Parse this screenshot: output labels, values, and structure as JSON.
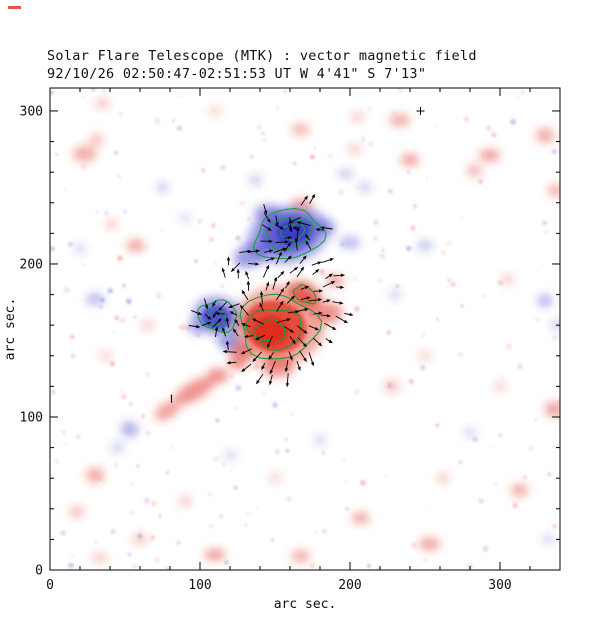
{
  "chart_data": {
    "type": "heatmap",
    "title": "Solar Flare Telescope (MTK) : vector magnetic field",
    "subtitle": "92/10/26  02:50:47-02:51:53 UT    W 4'41\"  S 7'13\"",
    "xlabel": "arc sec.",
    "ylabel": "arc sec.",
    "xlim": [
      0,
      340
    ],
    "ylim": [
      0,
      315
    ],
    "xticks": [
      0,
      100,
      200,
      300
    ],
    "yticks": [
      0,
      100,
      200,
      300
    ],
    "minor_tick_step": 20,
    "grid": false,
    "colors": {
      "positive": "#e02c1e",
      "negative": "#3c3cc8",
      "contour": "#14a03c",
      "vector": "#000000",
      "axis": "#000000",
      "background": "#ffffff"
    },
    "main_regions": [
      [
        159,
        219,
        28,
        19,
        -12,
        -1,
        0.38
      ],
      [
        159,
        220,
        20,
        14,
        -12,
        -1,
        0.7
      ],
      [
        162,
        221,
        11,
        8,
        -12,
        -1,
        0.95
      ],
      [
        134,
        206,
        12,
        8,
        -25,
        -1,
        0.5
      ],
      [
        145,
        233,
        9,
        6,
        0,
        -1,
        0.45
      ],
      [
        183,
        224,
        8,
        5,
        0,
        -1,
        0.4
      ],
      [
        200,
        214,
        7,
        4,
        0,
        -1,
        0.35
      ],
      [
        112,
        166,
        17,
        13,
        10,
        -1,
        0.45
      ],
      [
        111,
        165,
        10,
        8,
        10,
        -1,
        0.8
      ],
      [
        120,
        149,
        8,
        6,
        0,
        -1,
        0.5
      ],
      [
        98,
        159,
        6,
        5,
        0,
        -1,
        0.4
      ],
      [
        153,
        160,
        30,
        26,
        0,
        1,
        0.42
      ],
      [
        150,
        159,
        21,
        17,
        10,
        1,
        0.75
      ],
      [
        147,
        156,
        12,
        10,
        0,
        1,
        0.95
      ],
      [
        170,
        180,
        12,
        8,
        30,
        1,
        0.65
      ],
      [
        186,
        168,
        9,
        7,
        0,
        1,
        0.5
      ],
      [
        152,
        133,
        11,
        7,
        0,
        1,
        0.5
      ],
      [
        128,
        142,
        8,
        6,
        0,
        1,
        0.55
      ],
      [
        168,
        239,
        7,
        4,
        0,
        1,
        0.4
      ],
      [
        190,
        189,
        6,
        4,
        0,
        1,
        0.45
      ]
    ],
    "background_features": [
      [
        96,
        117,
        15,
        6,
        -30,
        1,
        0.5
      ],
      [
        78,
        104,
        9,
        5,
        -30,
        1,
        0.45
      ],
      [
        112,
        127,
        7,
        5,
        0,
        1,
        0.5
      ],
      [
        125,
        135,
        6,
        4,
        0,
        1,
        0.5
      ],
      [
        23,
        272,
        8,
        5,
        0,
        1,
        0.4
      ],
      [
        31,
        281,
        5,
        4,
        0,
        1,
        0.3
      ],
      [
        57,
        212,
        6,
        4,
        0,
        1,
        0.45
      ],
      [
        41,
        226,
        4,
        3,
        0,
        1,
        0.3
      ],
      [
        167,
        288,
        6,
        4,
        0,
        1,
        0.35
      ],
      [
        203,
        275,
        4,
        3,
        0,
        1,
        0.3
      ],
      [
        233,
        294,
        7,
        4,
        0,
        1,
        0.4
      ],
      [
        240,
        268,
        6,
        4,
        0,
        1,
        0.45
      ],
      [
        293,
        271,
        7,
        4,
        0,
        1,
        0.45
      ],
      [
        283,
        261,
        5,
        4,
        0,
        1,
        0.35
      ],
      [
        330,
        284,
        6,
        5,
        0,
        1,
        0.4
      ],
      [
        337,
        248,
        5,
        4,
        0,
        1,
        0.4
      ],
      [
        305,
        190,
        4,
        3,
        0,
        1,
        0.3
      ],
      [
        336,
        105,
        6,
        5,
        0,
        1,
        0.45
      ],
      [
        313,
        52,
        6,
        4,
        0,
        1,
        0.4
      ],
      [
        253,
        17,
        7,
        4,
        0,
        1,
        0.45
      ],
      [
        207,
        34,
        6,
        4,
        0,
        1,
        0.4
      ],
      [
        167,
        9,
        6,
        4,
        0,
        1,
        0.4
      ],
      [
        110,
        10,
        7,
        4,
        0,
        1,
        0.45
      ],
      [
        33,
        8,
        5,
        3,
        0,
        1,
        0.3
      ],
      [
        30,
        62,
        6,
        5,
        0,
        1,
        0.4
      ],
      [
        18,
        38,
        5,
        4,
        0,
        1,
        0.3
      ],
      [
        60,
        20,
        5,
        3,
        0,
        1,
        0.3
      ],
      [
        228,
        120,
        5,
        4,
        0,
        1,
        0.3
      ],
      [
        250,
        140,
        4,
        3,
        0,
        1,
        0.25
      ],
      [
        65,
        160,
        4,
        3,
        0,
        1,
        0.3
      ],
      [
        37,
        140,
        4,
        3,
        0,
        1,
        0.25
      ],
      [
        262,
        60,
        4,
        3,
        0,
        1,
        0.3
      ],
      [
        90,
        45,
        4,
        3,
        0,
        1,
        0.3
      ],
      [
        150,
        60,
        4,
        3,
        0,
        1,
        0.25
      ],
      [
        300,
        120,
        4,
        3,
        0,
        1,
        0.25
      ],
      [
        35,
        305,
        5,
        3,
        0,
        1,
        0.3
      ],
      [
        110,
        300,
        4,
        3,
        0,
        1,
        0.25
      ],
      [
        205,
        296,
        4,
        3,
        0,
        1,
        0.3
      ],
      [
        30,
        177,
        6,
        4,
        0,
        -1,
        0.35
      ],
      [
        53,
        92,
        6,
        5,
        0,
        -1,
        0.4
      ],
      [
        45,
        80,
        4,
        3,
        0,
        -1,
        0.3
      ],
      [
        250,
        212,
        5,
        3,
        0,
        -1,
        0.35
      ],
      [
        330,
        176,
        5,
        4,
        0,
        -1,
        0.4
      ],
      [
        338,
        160,
        4,
        3,
        0,
        -1,
        0.3
      ],
      [
        75,
        250,
        4,
        3,
        0,
        -1,
        0.3
      ],
      [
        90,
        230,
        3,
        3,
        0,
        -1,
        0.25
      ],
      [
        210,
        250,
        4,
        3,
        0,
        -1,
        0.3
      ],
      [
        280,
        90,
        4,
        3,
        0,
        -1,
        0.25
      ],
      [
        180,
        85,
        4,
        3,
        0,
        -1,
        0.25
      ],
      [
        120,
        75,
        4,
        3,
        0,
        -1,
        0.25
      ],
      [
        230,
        180,
        4,
        3,
        0,
        -1,
        0.25
      ],
      [
        332,
        20,
        4,
        3,
        0,
        -1,
        0.25
      ],
      [
        20,
        210,
        4,
        3,
        0,
        -1,
        0.25
      ],
      [
        137,
        255,
        4,
        3,
        0,
        -1,
        0.3
      ],
      [
        197,
        259,
        5,
        3,
        0,
        -1,
        0.3
      ]
    ],
    "contours": [
      [
        159,
        219,
        23,
        16,
        -12
      ],
      [
        159,
        220,
        15,
        10,
        -12
      ],
      [
        162,
        221,
        8,
        5,
        -12
      ],
      [
        112,
        166,
        13,
        10,
        10
      ],
      [
        111,
        165,
        6,
        5,
        10
      ],
      [
        152,
        159,
        26,
        21,
        5
      ],
      [
        150,
        158,
        18,
        13,
        8
      ],
      [
        147,
        156,
        10,
        7,
        0
      ],
      [
        170,
        180,
        8,
        5,
        30
      ]
    ],
    "vector_field": {
      "center": [
        150,
        160
      ],
      "grid_step": 8,
      "area": [
        86,
        104,
        216,
        246
      ],
      "base_length": 9,
      "twist_deg": 22,
      "extra_mask": [
        [
          150,
          196,
          38,
          12
        ]
      ]
    },
    "speckle": {
      "count": 240,
      "seed": 11
    },
    "markers": [
      {
        "x": 247,
        "y": 300,
        "type": "plus"
      },
      {
        "x": 81,
        "y": 112,
        "type": "tick"
      }
    ]
  }
}
